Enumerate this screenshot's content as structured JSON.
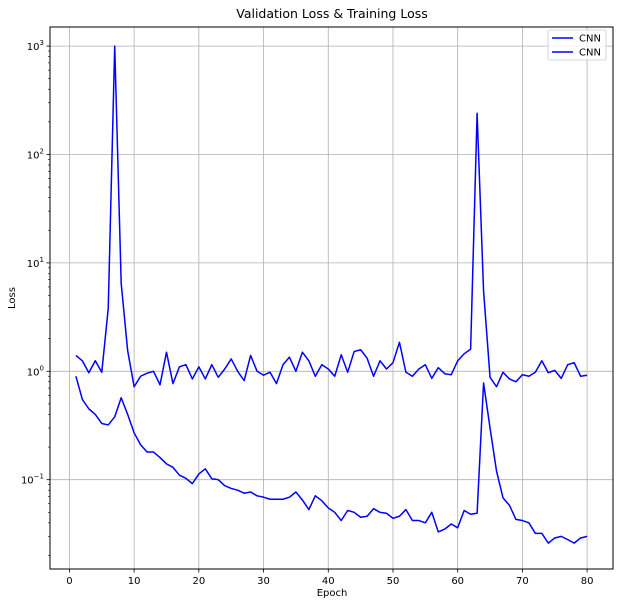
{
  "chart_data": {
    "type": "line",
    "title": "Validation Loss & Training Loss",
    "xlabel": "Epoch",
    "ylabel": "Loss",
    "xlim": [
      -3,
      84
    ],
    "ylim": [
      0.015,
      1500
    ],
    "yscale": "log",
    "grid": true,
    "legend_position": "top-right",
    "x_ticks": [
      0,
      10,
      20,
      30,
      40,
      50,
      60,
      70,
      80
    ],
    "y_ticks": [
      {
        "value": 0.1,
        "base": "10",
        "exp": "−1"
      },
      {
        "value": 1,
        "base": "10",
        "exp": "0"
      },
      {
        "value": 10,
        "base": "10",
        "exp": "1"
      },
      {
        "value": 100,
        "base": "10",
        "exp": "2"
      },
      {
        "value": 1000,
        "base": "10",
        "exp": "3"
      }
    ],
    "x": [
      1,
      2,
      3,
      4,
      5,
      6,
      7,
      8,
      9,
      10,
      11,
      12,
      13,
      14,
      15,
      16,
      17,
      18,
      19,
      20,
      21,
      22,
      23,
      24,
      25,
      26,
      27,
      28,
      29,
      30,
      31,
      32,
      33,
      34,
      35,
      36,
      37,
      38,
      39,
      40,
      41,
      42,
      43,
      44,
      45,
      46,
      47,
      48,
      49,
      50,
      51,
      52,
      53,
      54,
      55,
      56,
      57,
      58,
      59,
      60,
      61,
      62,
      63,
      64,
      65,
      66,
      67,
      68,
      69,
      70,
      71,
      72,
      73,
      74,
      75,
      76,
      77,
      78,
      79,
      80
    ],
    "series": [
      {
        "name": "CNN",
        "color": "#0000ff",
        "values": [
          1.4,
          1.25,
          0.97,
          1.25,
          0.98,
          3.8,
          1000,
          6.5,
          1.55,
          0.72,
          0.9,
          0.96,
          1.0,
          0.75,
          1.5,
          0.77,
          1.1,
          1.15,
          0.85,
          1.1,
          0.85,
          1.15,
          0.88,
          1.05,
          1.3,
          1.0,
          0.82,
          1.4,
          1.0,
          0.92,
          0.98,
          0.77,
          1.15,
          1.35,
          1.0,
          1.5,
          1.25,
          0.9,
          1.15,
          1.05,
          0.9,
          1.42,
          0.98,
          1.52,
          1.58,
          1.32,
          0.9,
          1.25,
          1.05,
          1.2,
          1.85,
          0.98,
          0.9,
          1.05,
          1.15,
          0.86,
          1.08,
          0.95,
          0.93,
          1.25,
          1.45,
          1.6,
          240,
          5.5,
          0.88,
          0.72,
          0.98,
          0.85,
          0.8,
          0.93,
          0.9,
          0.98,
          1.25,
          0.97,
          1.02,
          0.86,
          1.15,
          1.2,
          0.9,
          0.92
        ]
      },
      {
        "name": "CNN",
        "color": "#0000ff",
        "values": [
          0.9,
          0.55,
          0.45,
          0.4,
          0.33,
          0.32,
          0.38,
          0.57,
          0.4,
          0.27,
          0.21,
          0.18,
          0.18,
          0.16,
          0.14,
          0.13,
          0.11,
          0.103,
          0.092,
          0.113,
          0.126,
          0.102,
          0.1,
          0.088,
          0.083,
          0.08,
          0.075,
          0.077,
          0.071,
          0.069,
          0.066,
          0.066,
          0.066,
          0.069,
          0.077,
          0.065,
          0.053,
          0.071,
          0.064,
          0.055,
          0.05,
          0.042,
          0.052,
          0.05,
          0.045,
          0.046,
          0.054,
          0.05,
          0.049,
          0.044,
          0.046,
          0.053,
          0.042,
          0.042,
          0.04,
          0.05,
          0.033,
          0.035,
          0.039,
          0.036,
          0.052,
          0.048,
          0.049,
          0.78,
          0.3,
          0.12,
          0.068,
          0.058,
          0.043,
          0.042,
          0.04,
          0.032,
          0.032,
          0.026,
          0.029,
          0.03,
          0.028,
          0.026,
          0.029,
          0.03
        ]
      }
    ],
    "legend": [
      "CNN",
      "CNN"
    ]
  }
}
